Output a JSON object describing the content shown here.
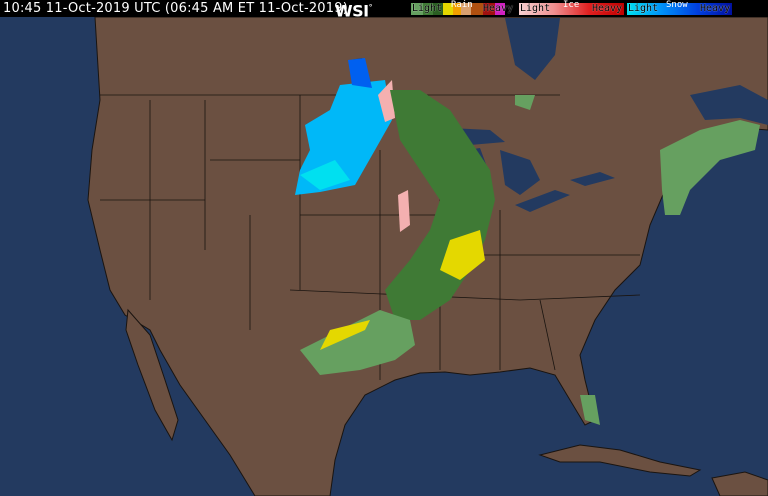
{
  "header": {
    "timestamp": "10:45 11-Oct-2019 UTC  (06:45 AM ET 11-Oct-2019)",
    "logo": "WSI",
    "logo_mark": "°"
  },
  "legend": {
    "rain": {
      "title": "Rain",
      "light": "Light",
      "heavy": "Heavy",
      "colors": [
        "#66a060",
        "#3f7a35",
        "#2a5e22",
        "#1e4a18",
        "#e4d800",
        "#f0a000",
        "#d8a070",
        "#b05010",
        "#a01010",
        "#d020c0"
      ]
    },
    "ice": {
      "title": "Ice",
      "light": "Light",
      "heavy": "Heavy",
      "colors": [
        "#f8d0d0",
        "#f4b0b0",
        "#f09090",
        "#f07070",
        "#e84848",
        "#e02020",
        "#c00000"
      ]
    },
    "snow": {
      "title": "Snow",
      "light": "Light",
      "heavy": "Heavy",
      "colors": [
        "#00e0f0",
        "#00b8f8",
        "#0090f8",
        "#0060f0",
        "#0040e0",
        "#0020c0",
        "#0010a0"
      ]
    }
  },
  "map": {
    "land_color": "#6b5041",
    "water_color": "#233a60",
    "border_color": "#1a1410"
  }
}
